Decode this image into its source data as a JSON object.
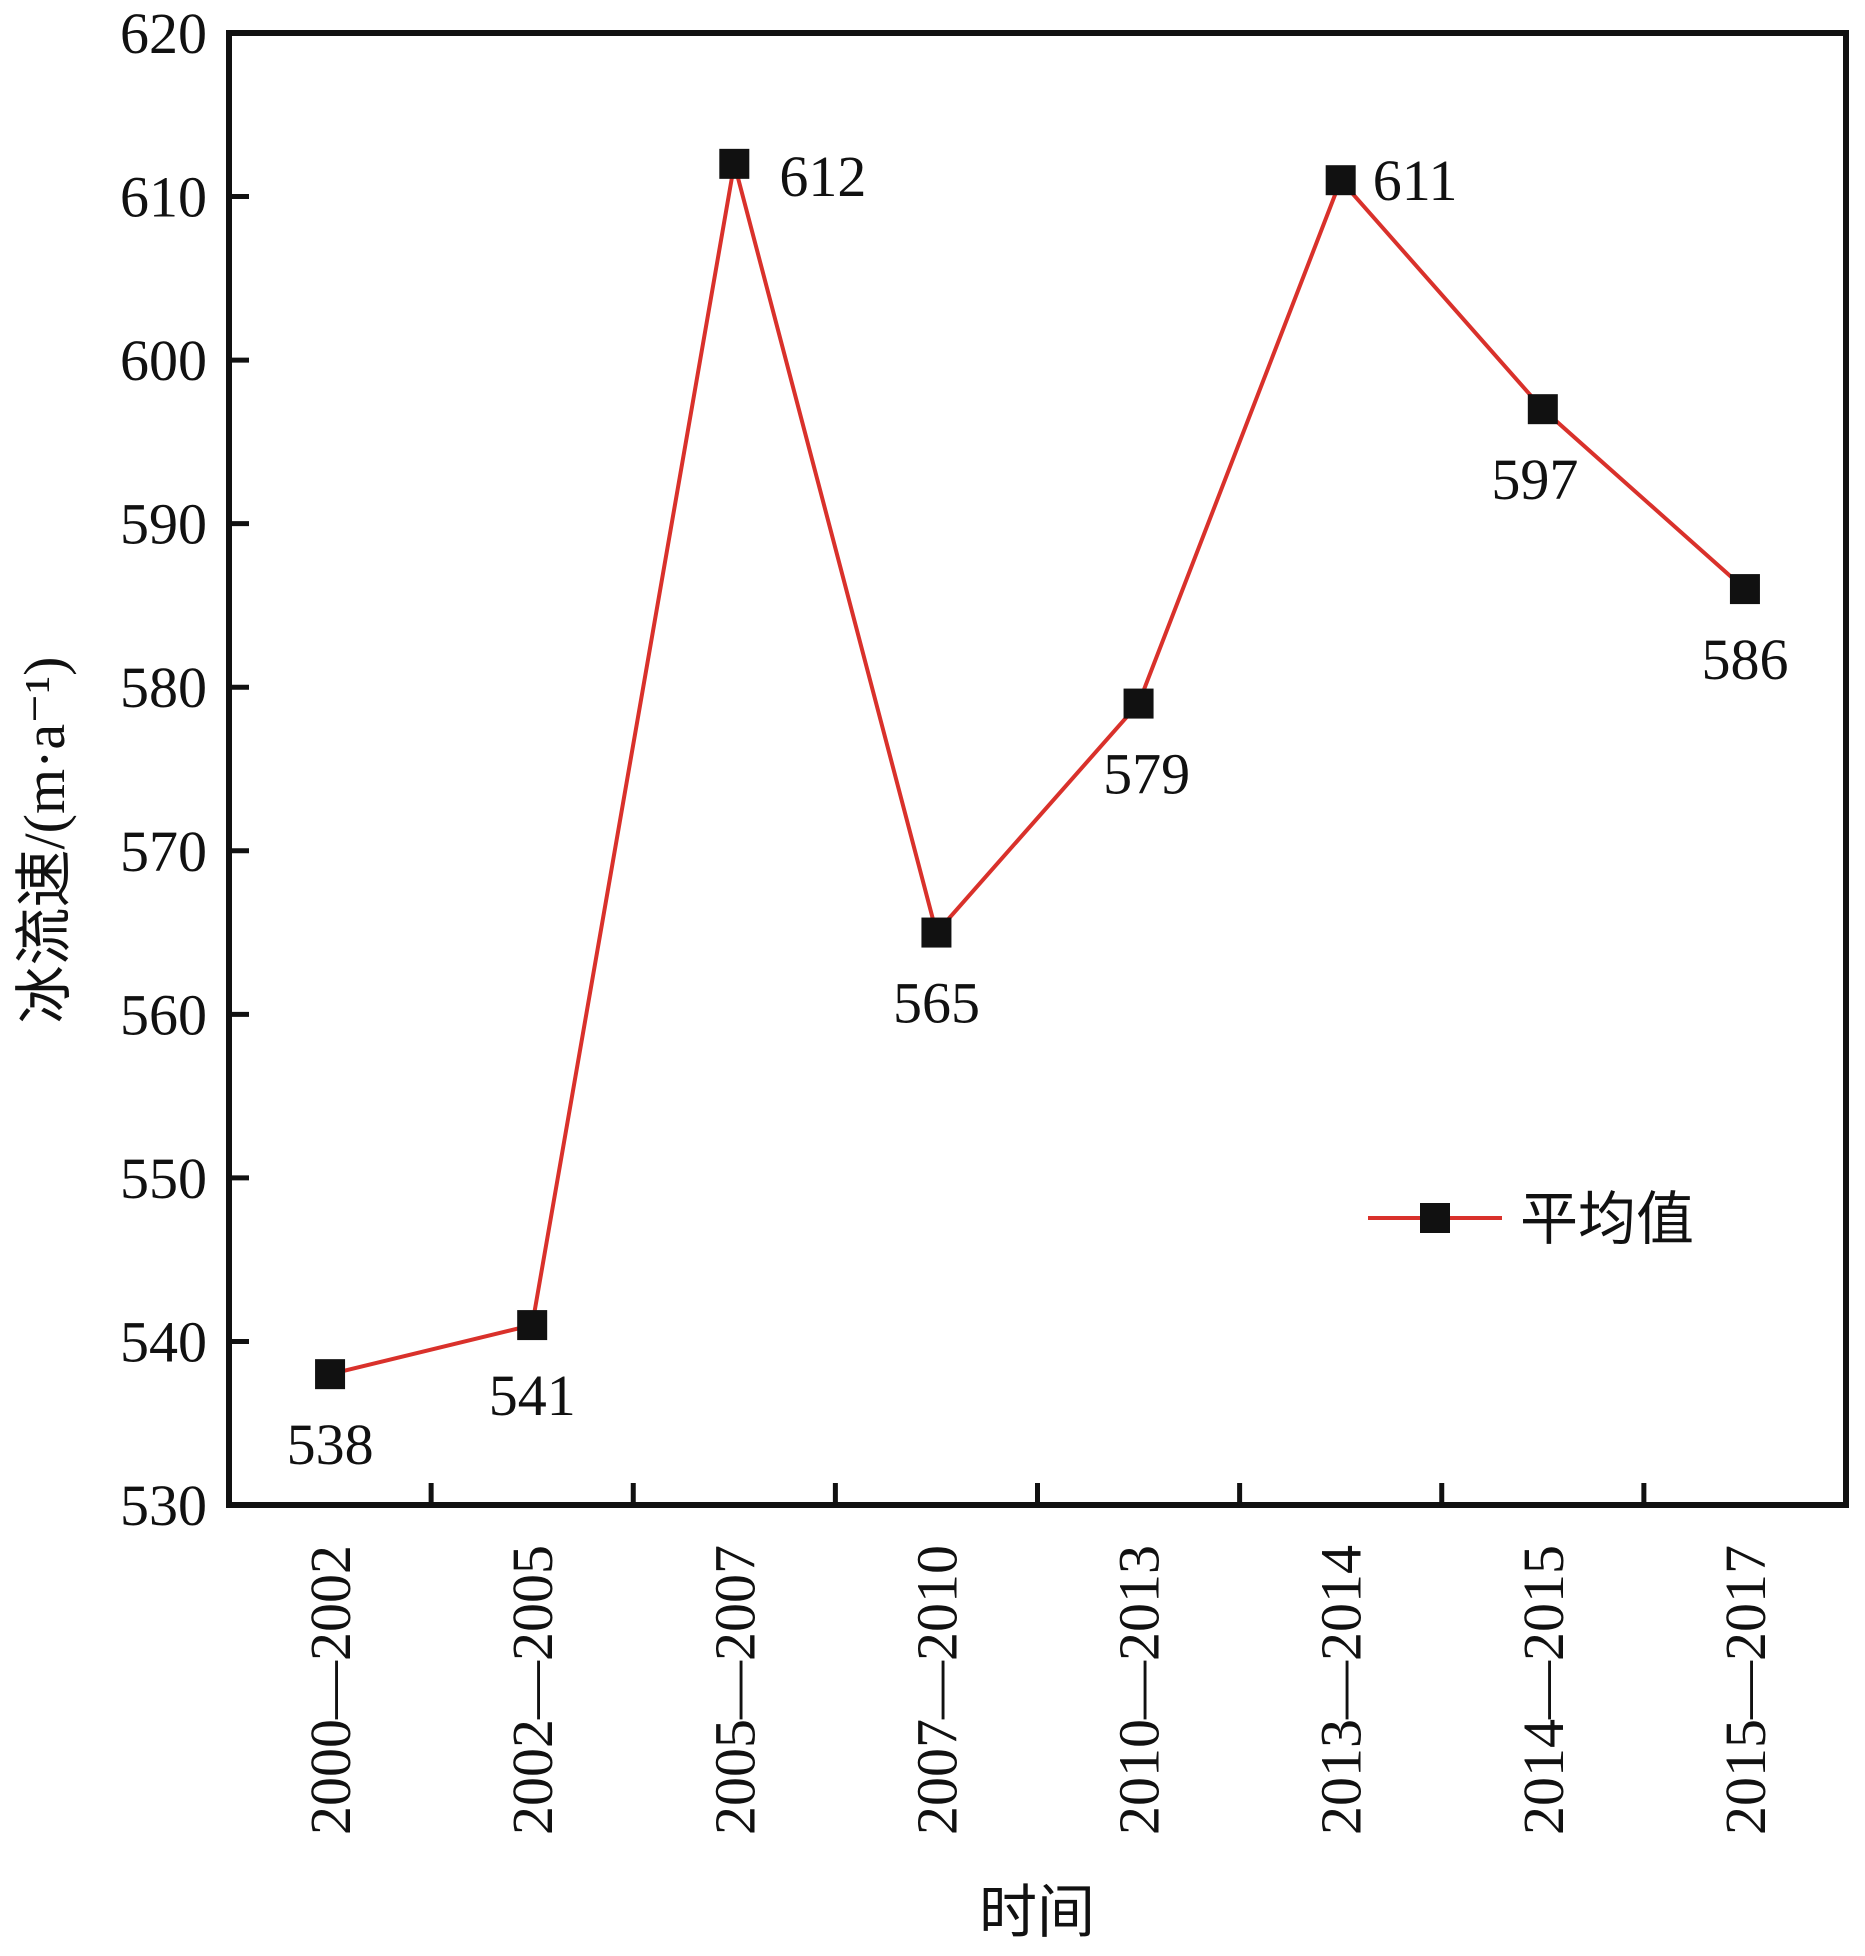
{
  "chart_data": {
    "type": "line",
    "title": "",
    "xlabel": "时间",
    "ylabel": "冰流速/(m·a⁻¹)",
    "ylim": [
      530,
      620
    ],
    "yticks": [
      530,
      540,
      550,
      560,
      570,
      580,
      590,
      600,
      610,
      620
    ],
    "categories": [
      "2000—2002",
      "2002—2005",
      "2005—2007",
      "2007—2010",
      "2010—2013",
      "2013—2014",
      "2014—2015",
      "2015—2017"
    ],
    "series": [
      {
        "name": "平均值",
        "values": [
          538,
          541,
          612,
          565,
          579,
          611,
          597,
          586
        ],
        "line_color": "#d9312b",
        "marker": "square",
        "marker_color": "#111111"
      }
    ],
    "data_labels": [
      "538",
      "541",
      "612",
      "565",
      "579",
      "611",
      "597",
      "586"
    ],
    "legend": {
      "position": "center-right",
      "label": "平均值"
    },
    "grid": false
  }
}
